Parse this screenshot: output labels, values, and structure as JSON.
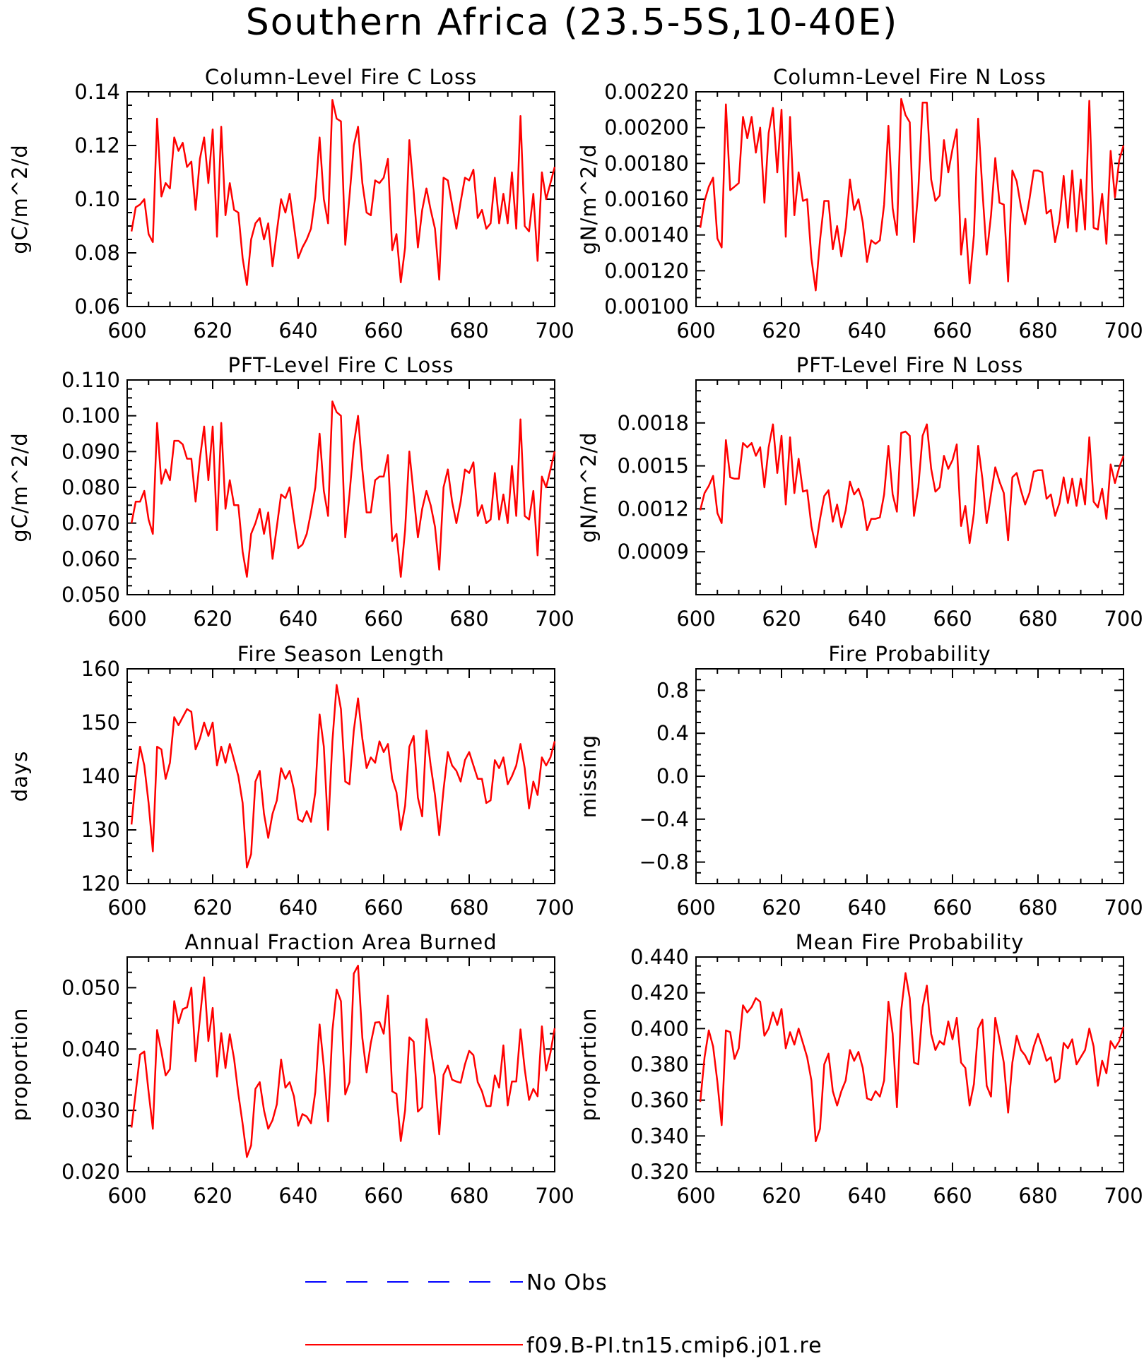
{
  "title": "Southern Africa (23.5-5S,10-40E)",
  "colors": {
    "model": "#ff0000",
    "obs": "#0000ff",
    "axis": "#000000"
  },
  "legend": {
    "obs_label": "No Obs",
    "model_label": "f09.B-PI.tn15.cmip6.j01.re"
  },
  "chart_data": [
    {
      "type": "line",
      "title": "Column-Level Fire C Loss",
      "ylabel": "gC/m^2/d",
      "xlim": [
        600,
        700
      ],
      "ylim": [
        0.06,
        0.14
      ],
      "xticks": [
        "600",
        "620",
        "640",
        "660",
        "680",
        "700"
      ],
      "yticks": [
        0.06,
        0.08,
        0.1,
        0.12,
        0.14
      ],
      "ytick_labels": [
        "0.06",
        "0.08",
        "0.10",
        "0.12",
        "0.14"
      ],
      "x_start": 601,
      "series": [
        {
          "values": [
            0.088,
            0.097,
            0.098,
            0.1,
            0.087,
            0.084,
            0.13,
            0.101,
            0.106,
            0.104,
            0.123,
            0.118,
            0.121,
            0.112,
            0.114,
            0.096,
            0.115,
            0.123,
            0.106,
            0.126,
            0.086,
            0.127,
            0.094,
            0.106,
            0.096,
            0.095,
            0.078,
            0.068,
            0.085,
            0.091,
            0.093,
            0.085,
            0.091,
            0.075,
            0.088,
            0.1,
            0.095,
            0.102,
            0.09,
            0.078,
            0.082,
            0.085,
            0.089,
            0.101,
            0.123,
            0.1,
            0.091,
            0.137,
            0.13,
            0.129,
            0.083,
            0.101,
            0.12,
            0.127,
            0.106,
            0.095,
            0.094,
            0.107,
            0.106,
            0.108,
            0.115,
            0.081,
            0.087,
            0.069,
            0.082,
            0.122,
            0.103,
            0.082,
            0.096,
            0.104,
            0.096,
            0.089,
            0.07,
            0.108,
            0.107,
            0.098,
            0.089,
            0.099,
            0.108,
            0.107,
            0.111,
            0.093,
            0.096,
            0.089,
            0.091,
            0.108,
            0.091,
            0.102,
            0.091,
            0.11,
            0.089,
            0.131,
            0.09,
            0.088,
            0.102,
            0.077,
            0.11,
            0.1,
            0.106,
            0.112
          ]
        }
      ]
    },
    {
      "type": "line",
      "title": "Column-Level Fire N Loss",
      "ylabel": "gN/m^2/d",
      "xlim": [
        600,
        700
      ],
      "ylim": [
        0.001,
        0.0022
      ],
      "xticks": [
        "600",
        "620",
        "640",
        "660",
        "680",
        "700"
      ],
      "yticks": [
        0.001,
        0.0012,
        0.0014,
        0.0016,
        0.0018,
        0.002,
        0.0022
      ],
      "ytick_labels": [
        "0.00100",
        "0.00120",
        "0.00140",
        "0.00160",
        "0.00180",
        "0.00200",
        "0.00220"
      ],
      "x_start": 601,
      "series": [
        {
          "values": [
            0.00144,
            0.00159,
            0.00167,
            0.00172,
            0.00138,
            0.00133,
            0.00213,
            0.00165,
            0.00167,
            0.00169,
            0.00206,
            0.00194,
            0.00206,
            0.00186,
            0.002,
            0.00158,
            0.00197,
            0.00211,
            0.00175,
            0.0021,
            0.00139,
            0.00206,
            0.00151,
            0.00175,
            0.00159,
            0.0016,
            0.00127,
            0.00109,
            0.00137,
            0.00159,
            0.00159,
            0.00132,
            0.00145,
            0.00128,
            0.00144,
            0.00171,
            0.00154,
            0.0016,
            0.00147,
            0.00125,
            0.00137,
            0.00135,
            0.00137,
            0.00157,
            0.00201,
            0.00155,
            0.0014,
            0.00216,
            0.00207,
            0.00203,
            0.00136,
            0.00165,
            0.00214,
            0.00214,
            0.00171,
            0.00159,
            0.00162,
            0.00193,
            0.00175,
            0.00188,
            0.00199,
            0.00129,
            0.00149,
            0.00113,
            0.0014,
            0.00205,
            0.00165,
            0.00129,
            0.00151,
            0.00183,
            0.00158,
            0.00157,
            0.00114,
            0.00176,
            0.0017,
            0.00156,
            0.00146,
            0.0016,
            0.00176,
            0.00176,
            0.00175,
            0.00152,
            0.00154,
            0.00136,
            0.00148,
            0.00173,
            0.00144,
            0.00176,
            0.00142,
            0.00171,
            0.00143,
            0.00215,
            0.00144,
            0.00143,
            0.00163,
            0.00135,
            0.00187,
            0.00161,
            0.00182,
            0.0019
          ]
        }
      ]
    },
    {
      "type": "line",
      "title": "PFT-Level Fire C Loss",
      "ylabel": "gC/m^2/d",
      "xlim": [
        600,
        700
      ],
      "ylim": [
        0.05,
        0.11
      ],
      "xticks": [
        "600",
        "620",
        "640",
        "660",
        "680",
        "700"
      ],
      "yticks": [
        0.05,
        0.06,
        0.07,
        0.08,
        0.09,
        0.1,
        0.11
      ],
      "ytick_labels": [
        "0.050",
        "0.060",
        "0.070",
        "0.080",
        "0.090",
        "0.100",
        "0.110"
      ],
      "x_start": 601,
      "series": [
        {
          "values": [
            0.07,
            0.076,
            0.076,
            0.079,
            0.071,
            0.067,
            0.098,
            0.081,
            0.085,
            0.082,
            0.093,
            0.093,
            0.092,
            0.088,
            0.088,
            0.076,
            0.088,
            0.097,
            0.082,
            0.097,
            0.068,
            0.098,
            0.074,
            0.082,
            0.075,
            0.075,
            0.062,
            0.055,
            0.067,
            0.07,
            0.074,
            0.067,
            0.073,
            0.06,
            0.069,
            0.078,
            0.077,
            0.08,
            0.071,
            0.063,
            0.064,
            0.067,
            0.073,
            0.08,
            0.095,
            0.079,
            0.072,
            0.104,
            0.101,
            0.1,
            0.066,
            0.078,
            0.092,
            0.1,
            0.085,
            0.073,
            0.073,
            0.082,
            0.083,
            0.083,
            0.089,
            0.065,
            0.067,
            0.055,
            0.068,
            0.09,
            0.078,
            0.066,
            0.074,
            0.079,
            0.075,
            0.069,
            0.057,
            0.08,
            0.085,
            0.076,
            0.07,
            0.076,
            0.085,
            0.084,
            0.087,
            0.072,
            0.075,
            0.07,
            0.071,
            0.084,
            0.071,
            0.078,
            0.07,
            0.086,
            0.072,
            0.099,
            0.072,
            0.071,
            0.079,
            0.061,
            0.083,
            0.08,
            0.085,
            0.09
          ]
        }
      ]
    },
    {
      "type": "line",
      "title": "PFT-Level Fire N Loss",
      "ylabel": "gN/m^2/d",
      "xlim": [
        600,
        700
      ],
      "ylim": [
        0.0006,
        0.0021
      ],
      "xticks": [
        "600",
        "620",
        "640",
        "660",
        "680",
        "700"
      ],
      "yticks": [
        0.0009,
        0.0012,
        0.0015,
        0.0018
      ],
      "ytick_labels": [
        "0.0009",
        "0.0012",
        "0.0015",
        "0.0018"
      ],
      "x_start": 601,
      "series": [
        {
          "values": [
            0.00119,
            0.00131,
            0.00136,
            0.00143,
            0.00117,
            0.0011,
            0.00168,
            0.00142,
            0.00141,
            0.00141,
            0.00166,
            0.00163,
            0.00166,
            0.00157,
            0.00163,
            0.00135,
            0.00163,
            0.00179,
            0.00145,
            0.00171,
            0.00123,
            0.0017,
            0.00131,
            0.00155,
            0.00132,
            0.00133,
            0.00108,
            0.00093,
            0.00113,
            0.00129,
            0.00133,
            0.00111,
            0.00123,
            0.00107,
            0.00119,
            0.00139,
            0.0013,
            0.00134,
            0.00125,
            0.00105,
            0.00113,
            0.00113,
            0.00114,
            0.0013,
            0.00164,
            0.0013,
            0.00118,
            0.00173,
            0.00174,
            0.00171,
            0.00115,
            0.00135,
            0.00171,
            0.00179,
            0.00148,
            0.00132,
            0.00135,
            0.00157,
            0.00148,
            0.00154,
            0.00165,
            0.00108,
            0.00122,
            0.00096,
            0.00117,
            0.00164,
            0.00141,
            0.0011,
            0.0013,
            0.00149,
            0.00139,
            0.00131,
            0.00098,
            0.00142,
            0.00145,
            0.00133,
            0.00123,
            0.00131,
            0.00146,
            0.00147,
            0.00147,
            0.00127,
            0.0013,
            0.00115,
            0.00124,
            0.00142,
            0.00124,
            0.00141,
            0.00122,
            0.00141,
            0.00123,
            0.0017,
            0.00125,
            0.00121,
            0.00134,
            0.00113,
            0.00151,
            0.00138,
            0.00149,
            0.00157
          ]
        }
      ]
    },
    {
      "type": "line",
      "title": "Fire Season Length",
      "ylabel": "days",
      "xlim": [
        600,
        700
      ],
      "ylim": [
        120,
        160
      ],
      "xticks": [
        "600",
        "620",
        "640",
        "660",
        "680",
        "700"
      ],
      "yticks": [
        120,
        130,
        140,
        150,
        160
      ],
      "ytick_labels": [
        "120",
        "130",
        "140",
        "150",
        "160"
      ],
      "x_start": 601,
      "series": [
        {
          "values": [
            131.0,
            139.5,
            145.5,
            142.0,
            135.0,
            126.0,
            145.5,
            145.0,
            139.5,
            142.5,
            151.0,
            149.5,
            151.0,
            152.5,
            152.0,
            145.0,
            147.0,
            150.0,
            147.5,
            150.0,
            142.0,
            145.5,
            142.5,
            146.0,
            143.0,
            140.0,
            135.0,
            123.0,
            125.5,
            139.0,
            141.0,
            133.0,
            128.5,
            133.0,
            135.5,
            141.5,
            139.5,
            141.0,
            137.5,
            132.0,
            131.5,
            133.5,
            131.5,
            137.0,
            151.5,
            145.5,
            130.0,
            146.5,
            157.0,
            152.5,
            139.0,
            138.5,
            148.5,
            154.5,
            147.0,
            141.5,
            143.5,
            142.5,
            146.5,
            144.5,
            146.0,
            139.5,
            137.0,
            130.0,
            134.5,
            145.5,
            147.5,
            136.0,
            132.5,
            148.5,
            142.0,
            136.5,
            129.0,
            137.5,
            144.5,
            142.0,
            141.0,
            139.0,
            143.0,
            144.5,
            142.0,
            139.5,
            139.5,
            135.0,
            135.5,
            143.0,
            141.5,
            143.5,
            138.5,
            140.0,
            142.0,
            146.0,
            141.5,
            134.0,
            139.0,
            136.5,
            143.5,
            142.0,
            143.5,
            146.5
          ]
        }
      ]
    },
    {
      "type": "line",
      "title": "Fire Probability",
      "ylabel": "missing",
      "xlim": [
        600,
        700
      ],
      "ylim": [
        -1,
        1
      ],
      "xticks": [
        "600",
        "620",
        "640",
        "660",
        "680",
        "700"
      ],
      "yticks": [
        -0.8,
        -0.4,
        0.0,
        0.4,
        0.8
      ],
      "ytick_labels": [
        "−0.8",
        "−0.4",
        "0.0",
        "0.4",
        "0.8"
      ],
      "x_start": 601,
      "series": [
        {
          "values": []
        }
      ]
    },
    {
      "type": "line",
      "title": "Annual Fraction Area Burned",
      "ylabel": "proportion",
      "xlim": [
        600,
        700
      ],
      "ylim": [
        0.02,
        0.055
      ],
      "xticks": [
        "600",
        "620",
        "640",
        "660",
        "680",
        "700"
      ],
      "yticks": [
        0.02,
        0.03,
        0.04,
        0.05
      ],
      "ytick_labels": [
        "0.020",
        "0.030",
        "0.040",
        "0.050"
      ],
      "x_start": 601,
      "series": [
        {
          "values": [
            0.0272,
            0.033,
            0.0391,
            0.0396,
            0.033,
            0.027,
            0.0431,
            0.0396,
            0.0357,
            0.0367,
            0.0478,
            0.0442,
            0.0465,
            0.0468,
            0.05,
            0.038,
            0.045,
            0.0517,
            0.0413,
            0.0467,
            0.0355,
            0.0426,
            0.0369,
            0.0424,
            0.0384,
            0.0327,
            0.0278,
            0.0224,
            0.0243,
            0.0335,
            0.0346,
            0.03,
            0.027,
            0.0284,
            0.031,
            0.0383,
            0.0337,
            0.0346,
            0.0323,
            0.0275,
            0.0294,
            0.029,
            0.0279,
            0.033,
            0.044,
            0.0371,
            0.0282,
            0.043,
            0.0497,
            0.0478,
            0.0326,
            0.0346,
            0.0523,
            0.0536,
            0.0418,
            0.0362,
            0.041,
            0.0443,
            0.0444,
            0.0425,
            0.0487,
            0.0331,
            0.0327,
            0.025,
            0.03,
            0.0419,
            0.0412,
            0.0298,
            0.0305,
            0.0449,
            0.0402,
            0.0355,
            0.0261,
            0.0358,
            0.0373,
            0.035,
            0.0347,
            0.0345,
            0.0375,
            0.0397,
            0.039,
            0.0346,
            0.0331,
            0.0307,
            0.0307,
            0.0357,
            0.0337,
            0.0406,
            0.0308,
            0.0347,
            0.0347,
            0.0432,
            0.0367,
            0.0317,
            0.0335,
            0.0323,
            0.0437,
            0.0365,
            0.0394,
            0.0434
          ]
        }
      ]
    },
    {
      "type": "line",
      "title": "Mean Fire Probability",
      "ylabel": "proportion",
      "xlim": [
        600,
        700
      ],
      "ylim": [
        0.32,
        0.44
      ],
      "xticks": [
        "600",
        "620",
        "640",
        "660",
        "680",
        "700"
      ],
      "yticks": [
        0.32,
        0.34,
        0.36,
        0.38,
        0.4,
        0.42,
        0.44
      ],
      "ytick_labels": [
        "0.320",
        "0.340",
        "0.360",
        "0.380",
        "0.400",
        "0.420",
        "0.440"
      ],
      "x_start": 601,
      "series": [
        {
          "values": [
            0.359,
            0.384,
            0.399,
            0.39,
            0.37,
            0.346,
            0.399,
            0.398,
            0.383,
            0.389,
            0.413,
            0.409,
            0.412,
            0.417,
            0.415,
            0.396,
            0.4,
            0.409,
            0.402,
            0.411,
            0.389,
            0.398,
            0.391,
            0.4,
            0.392,
            0.384,
            0.371,
            0.337,
            0.344,
            0.38,
            0.386,
            0.365,
            0.357,
            0.365,
            0.371,
            0.388,
            0.382,
            0.387,
            0.378,
            0.361,
            0.36,
            0.365,
            0.362,
            0.371,
            0.415,
            0.397,
            0.356,
            0.41,
            0.431,
            0.417,
            0.381,
            0.38,
            0.412,
            0.424,
            0.397,
            0.388,
            0.393,
            0.391,
            0.404,
            0.394,
            0.406,
            0.381,
            0.378,
            0.357,
            0.369,
            0.4,
            0.405,
            0.368,
            0.362,
            0.406,
            0.394,
            0.381,
            0.353,
            0.381,
            0.396,
            0.388,
            0.385,
            0.38,
            0.39,
            0.397,
            0.39,
            0.382,
            0.384,
            0.37,
            0.372,
            0.392,
            0.389,
            0.394,
            0.38,
            0.384,
            0.388,
            0.4,
            0.39,
            0.368,
            0.382,
            0.375,
            0.393,
            0.389,
            0.393,
            0.401
          ]
        }
      ]
    }
  ]
}
